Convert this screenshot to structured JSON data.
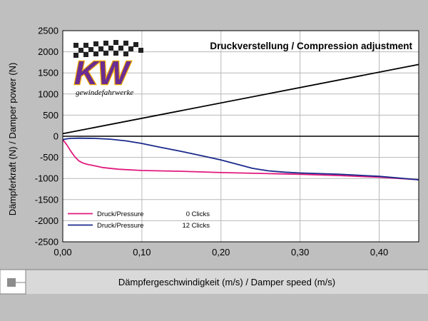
{
  "chart_data": {
    "type": "line",
    "title": "Druckverstellung / Compression adjustment",
    "xlabel": "Dämpfergeschwindigkeit (m/s) / Damper speed (m/s)",
    "ylabel": "Dämpferkraft (N) / Damper power (N)",
    "xlim": [
      0,
      0.45
    ],
    "ylim": [
      -2500,
      2500
    ],
    "x_ticks": [
      "0,00",
      "0,10",
      "0,20",
      "0,30",
      "0,40"
    ],
    "y_ticks": [
      "2500",
      "2000",
      "1500",
      "1000",
      "500",
      "0",
      "-500",
      "-1000",
      "-1500",
      "-2000",
      "-2500"
    ],
    "x_tick_values": [
      0,
      0.1,
      0.2,
      0.3,
      0.4
    ],
    "y_tick_values": [
      2500,
      2000,
      1500,
      1000,
      500,
      0,
      -500,
      -1000,
      -1500,
      -2000,
      -2500
    ],
    "grid": true,
    "legend_position": "bottom-left",
    "series": [
      {
        "name": "Druck/Pressure",
        "clicks": "0 Clicks",
        "color": "#e0197d",
        "legend": true,
        "points": [
          [
            0,
            -80
          ],
          [
            0.005,
            -200
          ],
          [
            0.01,
            -350
          ],
          [
            0.015,
            -480
          ],
          [
            0.02,
            -580
          ],
          [
            0.025,
            -630
          ],
          [
            0.03,
            -660
          ],
          [
            0.04,
            -700
          ],
          [
            0.05,
            -740
          ],
          [
            0.07,
            -780
          ],
          [
            0.1,
            -810
          ],
          [
            0.15,
            -830
          ],
          [
            0.2,
            -860
          ],
          [
            0.25,
            -880
          ],
          [
            0.3,
            -900
          ],
          [
            0.35,
            -930
          ],
          [
            0.4,
            -970
          ],
          [
            0.45,
            -1030
          ]
        ]
      },
      {
        "name": "Druck/Pressure",
        "clicks": "12 Clicks",
        "color": "#1a2a8c",
        "legend": true,
        "points": [
          [
            0,
            -80
          ],
          [
            0.005,
            -60
          ],
          [
            0.01,
            -50
          ],
          [
            0.02,
            -45
          ],
          [
            0.04,
            -50
          ],
          [
            0.06,
            -70
          ],
          [
            0.08,
            -110
          ],
          [
            0.1,
            -170
          ],
          [
            0.12,
            -250
          ],
          [
            0.15,
            -360
          ],
          [
            0.18,
            -480
          ],
          [
            0.2,
            -560
          ],
          [
            0.22,
            -660
          ],
          [
            0.24,
            -760
          ],
          [
            0.26,
            -820
          ],
          [
            0.28,
            -850
          ],
          [
            0.3,
            -870
          ],
          [
            0.35,
            -900
          ],
          [
            0.4,
            -950
          ],
          [
            0.45,
            -1030
          ]
        ]
      },
      {
        "name": "",
        "color": "#000000",
        "legend": false,
        "points": [
          [
            0,
            60
          ],
          [
            0.45,
            1700
          ]
        ]
      }
    ]
  },
  "logo": {
    "text": "KW",
    "subtitle": "gewindefahrwerke",
    "color_main": "#6b2d91",
    "color_outline": "#f2a900"
  },
  "colors": {
    "page_background": "#bfbfbf",
    "plot_background": "#ffffff",
    "xlabel_band": "#d9d9d9",
    "grid": "#b0b0b0"
  }
}
